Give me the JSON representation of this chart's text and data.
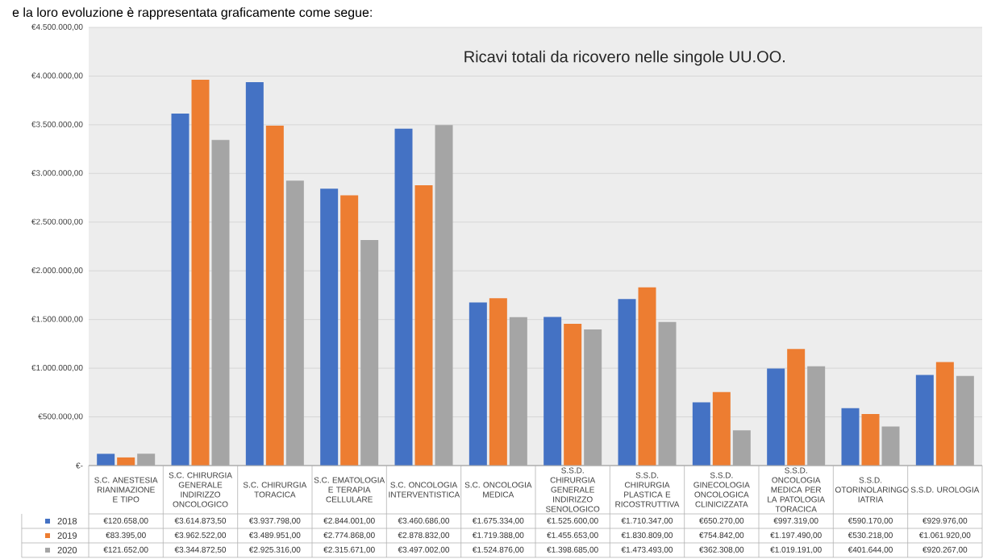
{
  "chart_data": {
    "type": "bar",
    "title": "Ricavi totali da ricovero nelle singole UU.OO.",
    "annotations": [
      "e la loro evoluzione è rappresentata graficamente come segue:"
    ],
    "categories": [
      "S.C. ANESTESIA RIANIMAZIONE E TIPO",
      "S.C. CHIRURGIA GENERALE INDIRIZZO ONCOLOGICO",
      "S.C. CHIRURGIA TORACICA",
      "S.C. EMATOLOGIA E TERAPIA CELLULARE",
      "S.C. ONCOLOGIA INTERVENTISTICA",
      "S.C. ONCOLOGIA MEDICA",
      "S.S.D. CHIRURGIA GENERALE INDIRIZZO SENOLOGICO",
      "S.S.D. CHIRURGIA PLASTICA E RICOSTRUTTIVA",
      "S.S.D. GINECOLOGIA ONCOLOGICA CLINICIZZATA",
      "S.S.D. ONCOLOGIA MEDICA PER LA PATOLOGIA TORACICA",
      "S.S.D. OTORINOLARINGO IATRIA",
      "S.S.D. UROLOGIA"
    ],
    "series": [
      {
        "name": "2018",
        "color": "#4472c4",
        "values": [
          120658,
          3614873.5,
          3937798,
          2844001,
          3460686,
          1675334,
          1525600,
          1710347,
          650270,
          997319,
          590170,
          929976
        ],
        "value_labels": [
          "€120.658,00",
          "€3.614.873,50",
          "€3.937.798,00",
          "€2.844.001,00",
          "€3.460.686,00",
          "€1.675.334,00",
          "€1.525.600,00",
          "€1.710.347,00",
          "€650.270,00",
          "€997.319,00",
          "€590.170,00",
          "€929.976,00"
        ]
      },
      {
        "name": "2019",
        "color": "#ed7d31",
        "values": [
          83395,
          3962522,
          3489951,
          2774868,
          2878832,
          1719388,
          1455653,
          1830809,
          754842,
          1197490,
          530218,
          1061920
        ],
        "value_labels": [
          "€83.395,00",
          "€3.962.522,00",
          "€3.489.951,00",
          "€2.774.868,00",
          "€2.878.832,00",
          "€1.719.388,00",
          "€1.455.653,00",
          "€1.830.809,00",
          "€754.842,00",
          "€1.197.490,00",
          "€530.218,00",
          "€1.061.920,00"
        ]
      },
      {
        "name": "2020",
        "color": "#a5a5a5",
        "values": [
          121652,
          3344872.5,
          2925316,
          2315671,
          3497002,
          1524876,
          1398685,
          1473493,
          362308,
          1019191,
          401644,
          920267
        ],
        "value_labels": [
          "€121.652,00",
          "€3.344.872,50",
          "€2.925.316,00",
          "€2.315.671,00",
          "€3.497.002,00",
          "€1.524.876,00",
          "€1.398.685,00",
          "€1.473.493,00",
          "€362.308,00",
          "€1.019.191,00",
          "€401.644,00",
          "€920.267,00"
        ]
      }
    ],
    "ylim": [
      0,
      4500000
    ],
    "yticks": [
      {
        "value": 0,
        "label": "€-"
      },
      {
        "value": 500000,
        "label": "€500.000,00"
      },
      {
        "value": 1000000,
        "label": "€1.000.000,00"
      },
      {
        "value": 1500000,
        "label": "€1.500.000,00"
      },
      {
        "value": 2000000,
        "label": "€2.000.000,00"
      },
      {
        "value": 2500000,
        "label": "€2.500.000,00"
      },
      {
        "value": 3000000,
        "label": "€3.000.000,00"
      },
      {
        "value": 3500000,
        "label": "€3.500.000,00"
      },
      {
        "value": 4000000,
        "label": "€4.000.000,00"
      },
      {
        "value": 4500000,
        "label": "€4.500.000,00"
      }
    ],
    "grid": "y",
    "legend": "bottom"
  }
}
